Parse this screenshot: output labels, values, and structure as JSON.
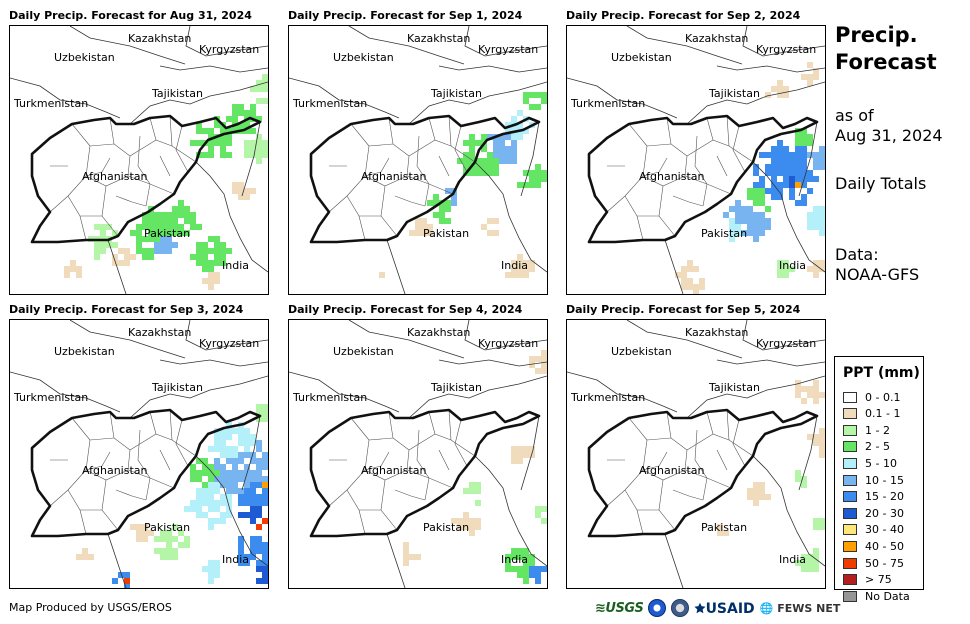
{
  "panels": [
    {
      "title": "Daily Precip. Forecast for Aug 31, 2024"
    },
    {
      "title": "Daily Precip. Forecast for Sep 1, 2024"
    },
    {
      "title": "Daily Precip. Forecast for Sep 2, 2024"
    },
    {
      "title": "Daily Precip. Forecast for Sep 3, 2024"
    },
    {
      "title": "Daily Precip. Forecast for Sep 4, 2024"
    },
    {
      "title": "Daily Precip. Forecast for Sep 5, 2024"
    }
  ],
  "map_labels": {
    "kazakhstan": "Kazakhstan",
    "uzbekistan": "Uzbekistan",
    "kyrgyzstan": "Kyrgyzstan",
    "tajikistan": "Tajikistan",
    "turkmenistan": "Turkmenistan",
    "afghanistan": "Afghanistan",
    "pakistan": "Pakistan",
    "india": "India"
  },
  "side": {
    "title_line1": "Precip.",
    "title_line2": "Forecast",
    "asof_line1": "as of",
    "asof_line2": "Aug 31, 2024",
    "totals": "Daily Totals",
    "data_line1": "Data:",
    "data_line2": "NOAA-GFS"
  },
  "legend": {
    "title": "PPT (mm)",
    "items": [
      {
        "label": "0 - 0.1",
        "color": "#ffffff"
      },
      {
        "label": "0.1 - 1",
        "color": "#f0dcbc"
      },
      {
        "label": "1 - 2",
        "color": "#b4f5a8"
      },
      {
        "label": "2 - 5",
        "color": "#64e664"
      },
      {
        "label": "5 - 10",
        "color": "#b4f0fa"
      },
      {
        "label": "10 - 15",
        "color": "#78b4f0"
      },
      {
        "label": "15 - 20",
        "color": "#3c8cf0"
      },
      {
        "label": "20 - 30",
        "color": "#1e5ad2"
      },
      {
        "label": "30 - 40",
        "color": "#ffe678"
      },
      {
        "label": "40 - 50",
        "color": "#ffa000"
      },
      {
        "label": "50 - 75",
        "color": "#f03c00"
      },
      {
        "label": "> 75",
        "color": "#b41e1e"
      },
      {
        "label": "No Data",
        "color": "#969696"
      }
    ]
  },
  "credit": "Map Produced by USGS/EROS",
  "logos": {
    "usgs": "USGS",
    "usaid": "USAID",
    "fews": "FEWS NET"
  }
}
